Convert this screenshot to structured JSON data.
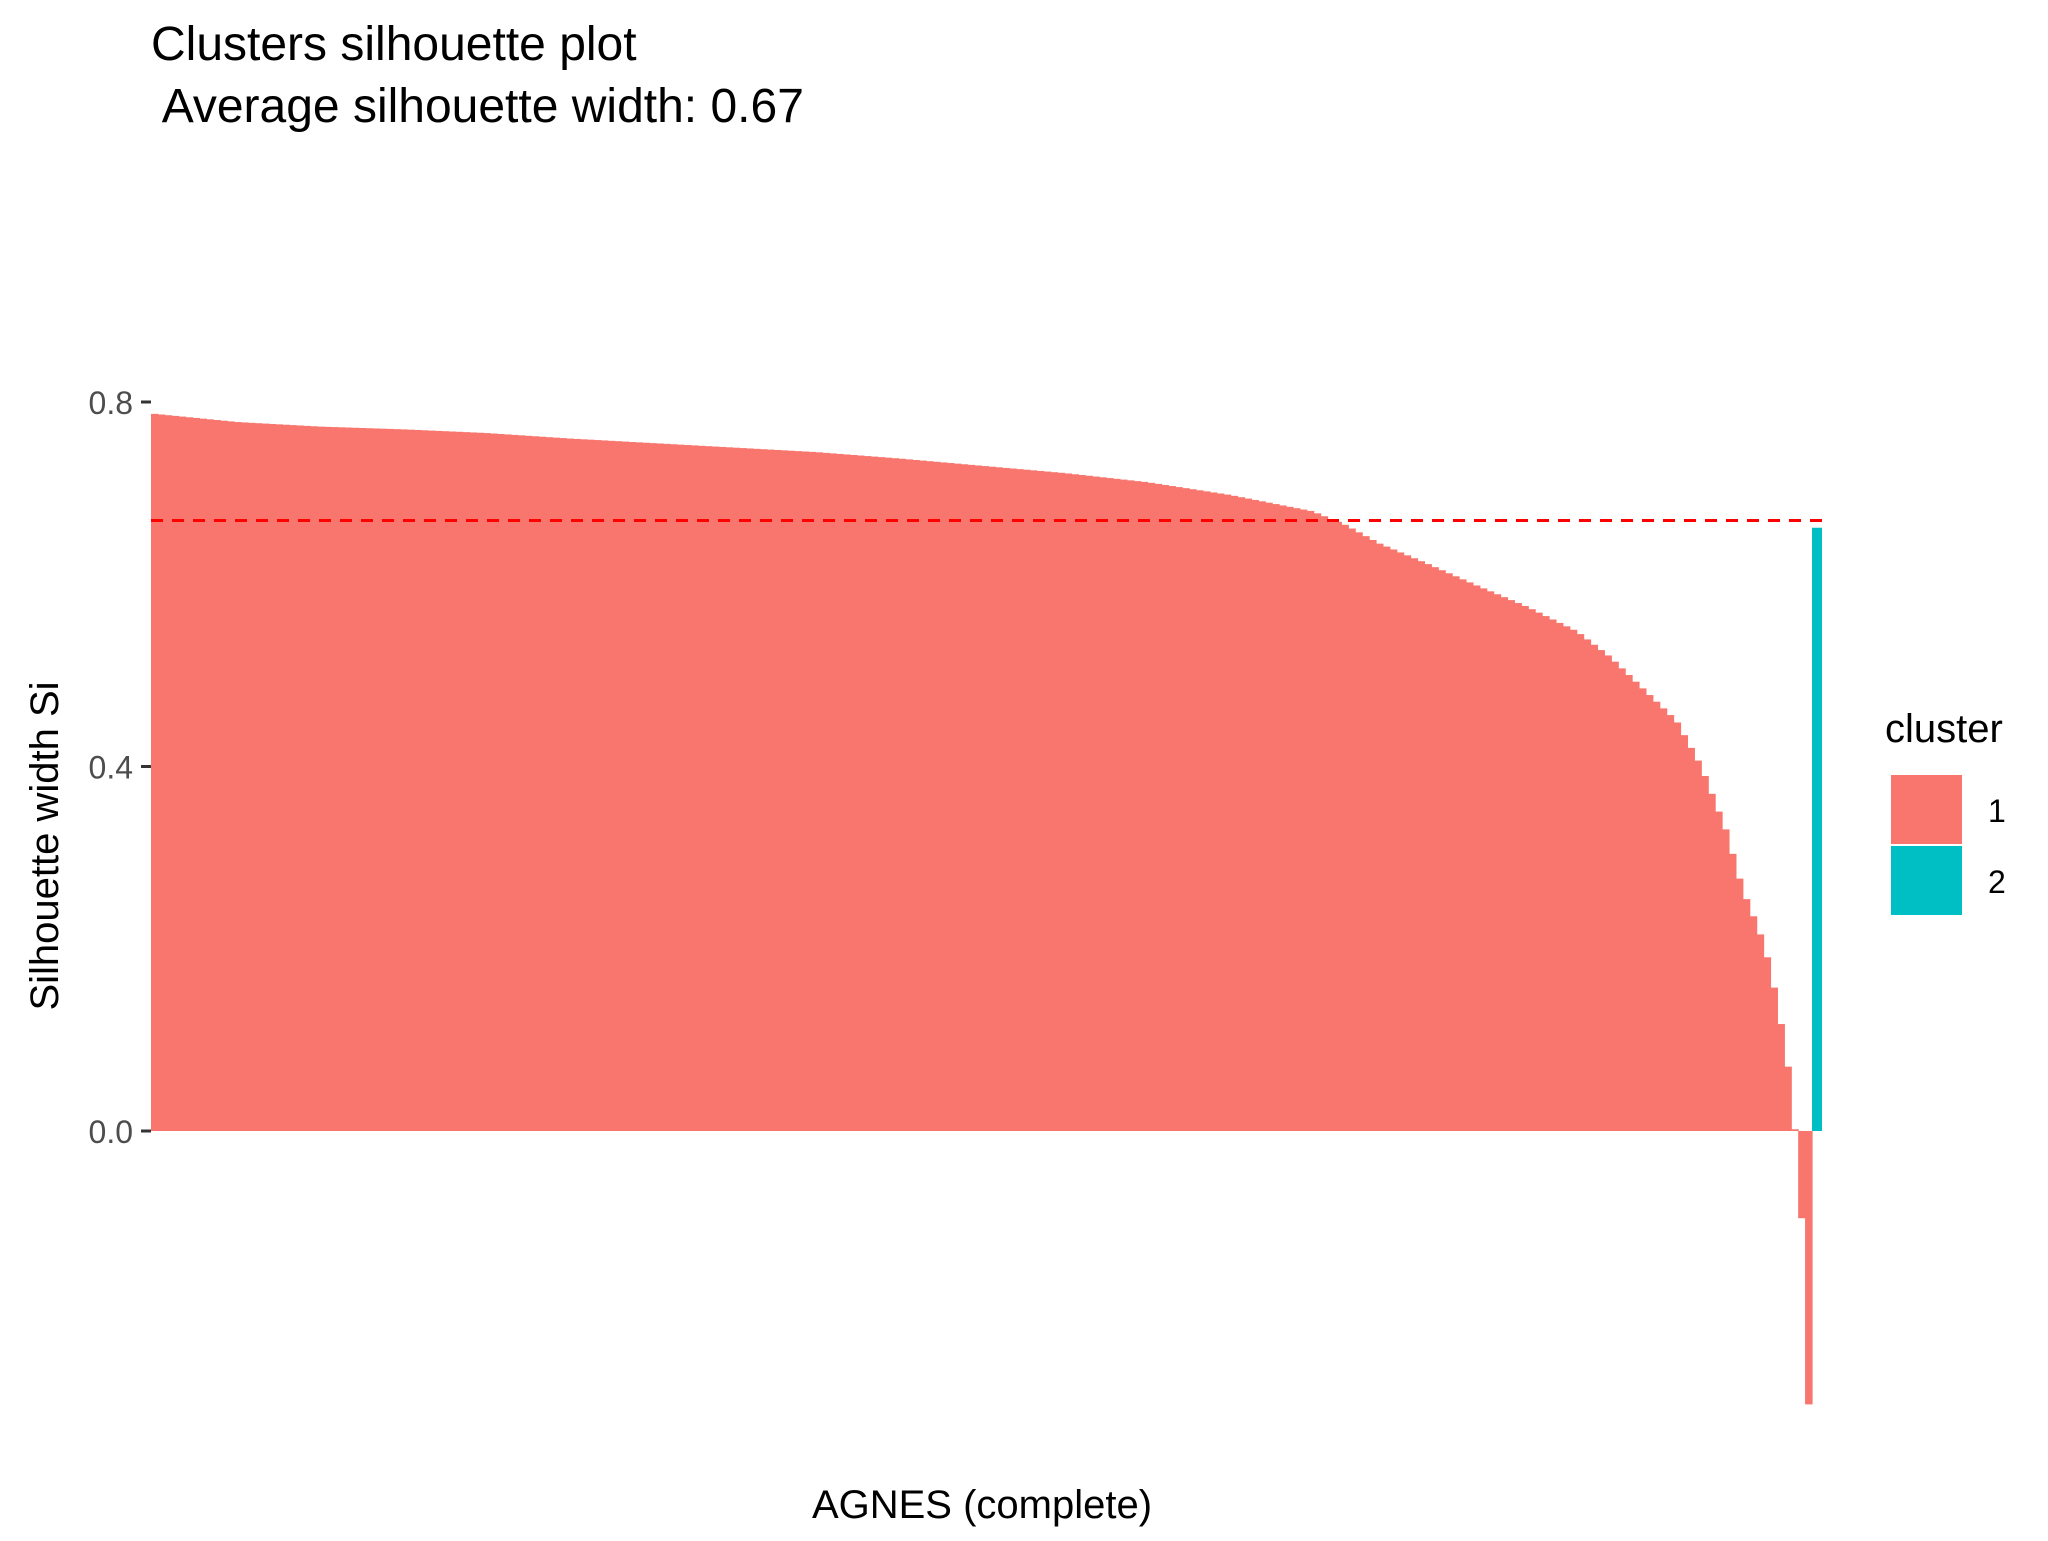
{
  "chart_data": {
    "type": "bar",
    "title": "Clusters silhouette plot",
    "subtitle": " Average silhouette width: 0.67",
    "xlabel": "AGNES (complete)",
    "ylabel": "Silhouette width Si",
    "ylim": [
      -0.38,
      0.81
    ],
    "y_ticks": [
      0.0,
      0.4,
      0.8
    ],
    "y_tick_labels": [
      "0.0",
      "0.4",
      "0.8"
    ],
    "x_tick_labels_shown": false,
    "average_silhouette_width": 0.67,
    "average_line": {
      "color": "#ff0000",
      "style": "dashed"
    },
    "legend": {
      "title": "cluster",
      "position": "right",
      "entries": [
        {
          "label": "1",
          "color": "#F8766D"
        },
        {
          "label": "2",
          "color": "#00BFC4"
        }
      ]
    },
    "series": [
      {
        "name": "1",
        "color": "#F8766D",
        "profile": [
          [
            0.0,
            0.787
          ],
          [
            0.05,
            0.778
          ],
          [
            0.1,
            0.773
          ],
          [
            0.15,
            0.77
          ],
          [
            0.2,
            0.766
          ],
          [
            0.25,
            0.76
          ],
          [
            0.3,
            0.755
          ],
          [
            0.35,
            0.75
          ],
          [
            0.4,
            0.745
          ],
          [
            0.45,
            0.738
          ],
          [
            0.5,
            0.73
          ],
          [
            0.55,
            0.722
          ],
          [
            0.6,
            0.712
          ],
          [
            0.65,
            0.698
          ],
          [
            0.7,
            0.68
          ],
          [
            0.72,
            0.665
          ],
          [
            0.74,
            0.645
          ],
          [
            0.77,
            0.622
          ],
          [
            0.8,
            0.598
          ],
          [
            0.83,
            0.575
          ],
          [
            0.86,
            0.548
          ],
          [
            0.88,
            0.52
          ],
          [
            0.9,
            0.485
          ],
          [
            0.92,
            0.45
          ],
          [
            0.935,
            0.4
          ],
          [
            0.95,
            0.33
          ],
          [
            0.96,
            0.265
          ],
          [
            0.97,
            0.22
          ],
          [
            0.975,
            0.19
          ],
          [
            0.98,
            0.15
          ],
          [
            0.985,
            0.1
          ],
          [
            0.99,
            0.04
          ],
          [
            0.993,
            -0.03
          ],
          [
            0.996,
            -0.1
          ],
          [
            0.998,
            -0.2
          ],
          [
            1.0,
            -0.3
          ]
        ]
      },
      {
        "name": "2",
        "color": "#00BFC4",
        "values": [
          0.662
        ]
      }
    ]
  }
}
